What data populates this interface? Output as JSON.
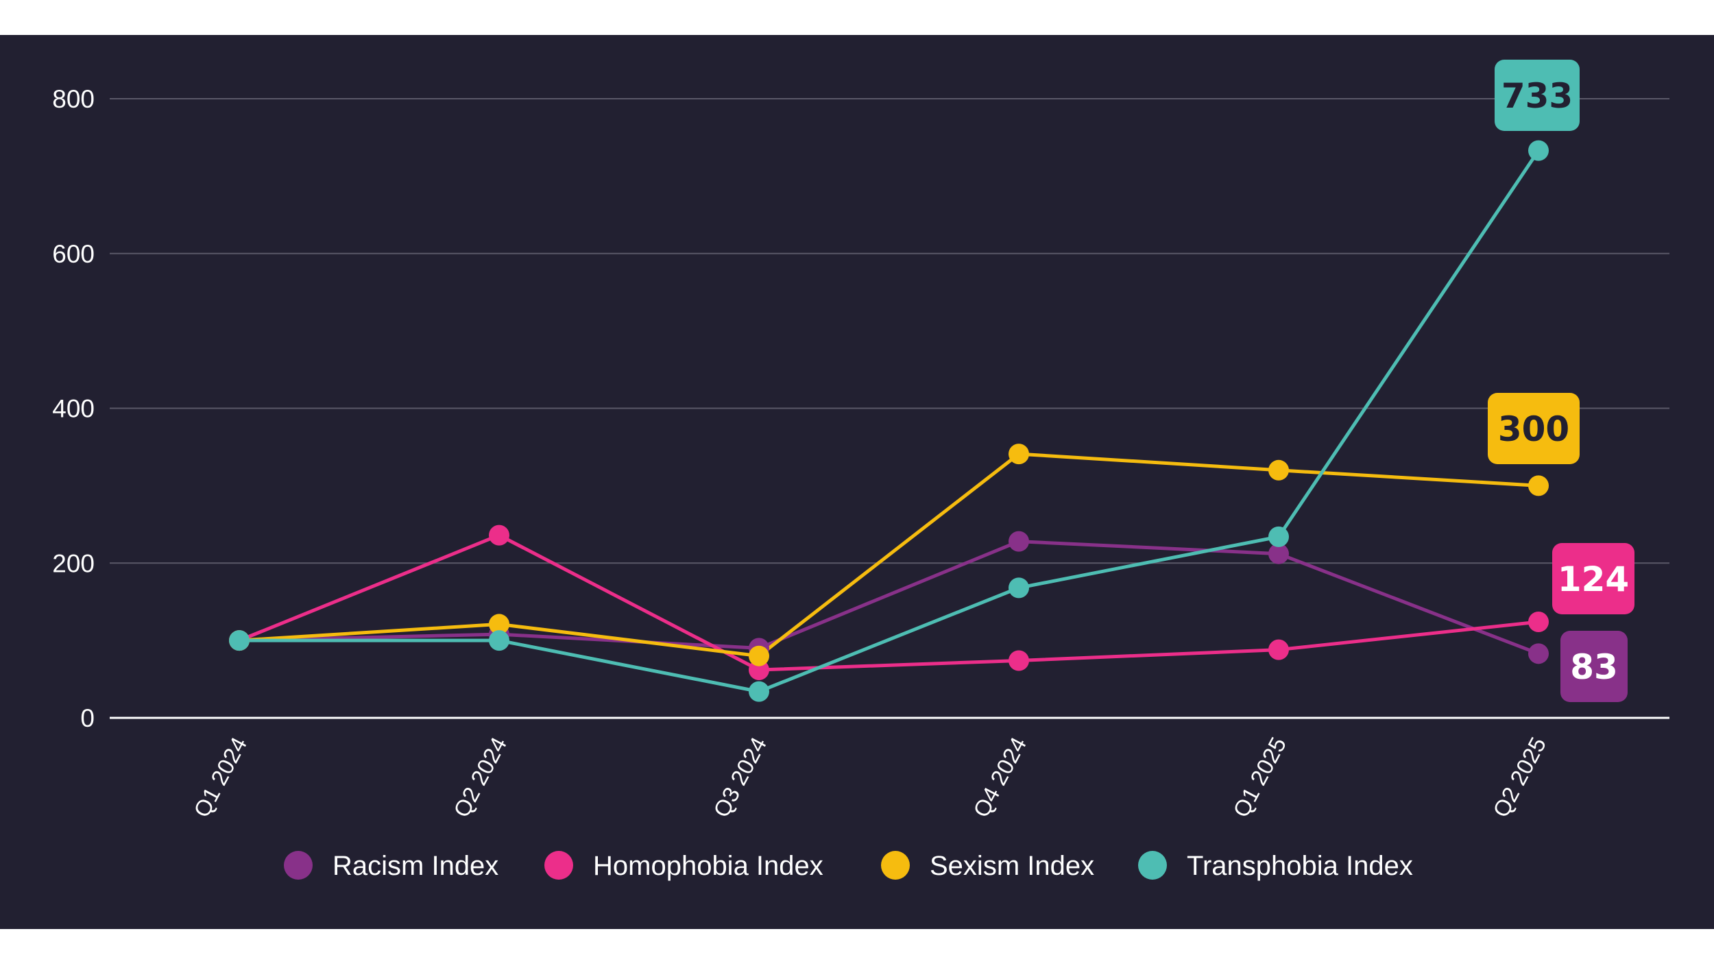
{
  "chart_data": {
    "type": "line",
    "title": "",
    "xlabel": "",
    "ylabel": "",
    "ylim": [
      0,
      800
    ],
    "yticks": [
      0,
      200,
      400,
      600,
      800
    ],
    "grid": true,
    "legend_position": "bottom-center",
    "categories": [
      "Q1 2024",
      "Q2 2024",
      "Q3 2024",
      "Q4 2024",
      "Q1 2025",
      "Q2 2025"
    ],
    "series": [
      {
        "name": "Racism Index",
        "color": "#883189",
        "values": [
          100,
          108,
          90,
          228,
          212,
          83
        ],
        "end_label": "83",
        "end_label_text_color": "#ffffff"
      },
      {
        "name": "Homophobia Index",
        "color": "#EC2E8A",
        "values": [
          100,
          236,
          62,
          74,
          88,
          124
        ],
        "end_label": "124",
        "end_label_text_color": "#ffffff"
      },
      {
        "name": "Sexism Index",
        "color": "#F6BC0F",
        "values": [
          100,
          121,
          80,
          341,
          320,
          300
        ],
        "end_label": "300",
        "end_label_text_color": "#222031"
      },
      {
        "name": "Transphobia Index",
        "color": "#4EBDB3",
        "values": [
          100,
          100,
          34,
          168,
          234,
          733
        ],
        "end_label": "733",
        "end_label_text_color": "#222031"
      }
    ]
  }
}
